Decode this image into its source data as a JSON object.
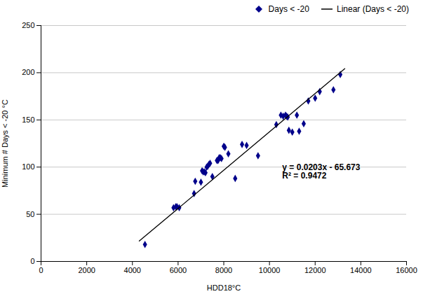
{
  "chart_data": {
    "type": "scatter",
    "xlabel": "HDD18°C",
    "ylabel": "Minimum # Days < -20 °C",
    "series": [
      {
        "name": "Days < -20",
        "type": "scatter",
        "color": "#00008B",
        "marker": "diamond",
        "x": [
          4550,
          5800,
          5900,
          5950,
          6050,
          6700,
          6750,
          7000,
          7050,
          7100,
          7150,
          7200,
          7250,
          7300,
          7350,
          7400,
          7500,
          7700,
          7750,
          7800,
          7850,
          7900,
          8000,
          8050,
          8200,
          8500,
          8800,
          9000,
          9500,
          10300,
          10500,
          10600,
          10700,
          10750,
          10800,
          10850,
          11000,
          11200,
          11300,
          11500,
          11700,
          12000,
          12200,
          12800,
          13100
        ],
        "values": [
          18,
          57,
          58,
          58,
          57,
          72,
          85,
          84,
          96,
          95,
          95,
          94,
          100,
          101,
          103,
          104,
          90,
          107,
          107,
          110,
          110,
          109,
          122,
          121,
          114,
          88,
          124,
          123,
          112,
          145,
          155,
          154,
          155,
          154,
          153,
          139,
          137,
          155,
          138,
          146,
          170,
          173,
          180,
          182,
          198
        ]
      },
      {
        "name": "Linear (Days < -20)",
        "type": "line",
        "color": "#000000",
        "x": [
          4300,
          13300
        ],
        "values": [
          21.617,
          204.317
        ]
      }
    ],
    "annotations": [
      "y = 0.0203x - 65.673",
      "R² = 0.9472"
    ],
    "xlim": [
      0,
      16000
    ],
    "ylim": [
      0,
      250
    ],
    "xticks": [
      0,
      2000,
      4000,
      6000,
      8000,
      10000,
      12000,
      14000,
      16000
    ],
    "yticks": [
      0,
      50,
      100,
      150,
      200,
      250
    ],
    "grid": "y",
    "legend": "upper right"
  }
}
